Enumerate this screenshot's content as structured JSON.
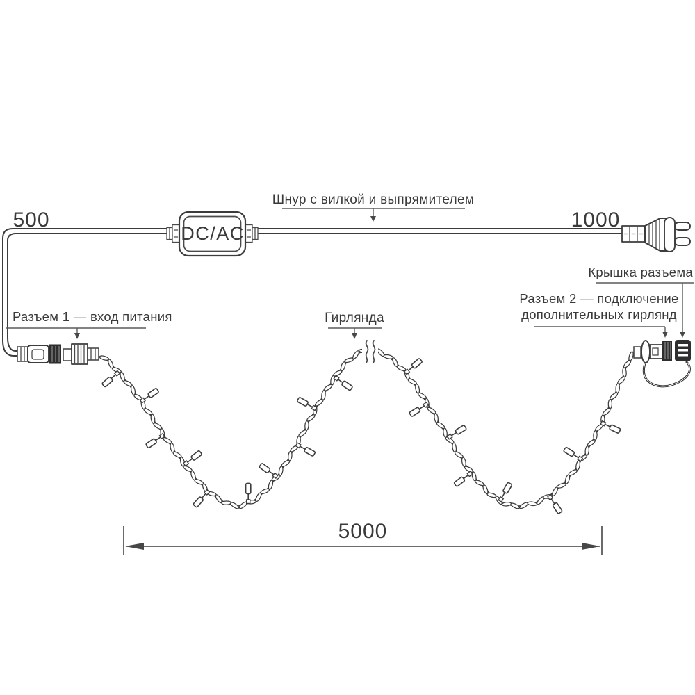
{
  "diagram": {
    "adapter_label": "DC/AC",
    "labels": {
      "cord": "Шнур с вилкой и выпрямителем",
      "connector1": "Разъем 1 — вход питания",
      "garland": "Гирлянда",
      "connector_cap": "Крышка разъема",
      "connector2_line1": "Разъем 2 — подключение",
      "connector2_line2": "дополнительных гирлянд"
    },
    "dimensions": {
      "cord_left_mm": "500",
      "cord_right_mm": "1000",
      "garland_length_mm": "5000"
    },
    "bulb_count": 18,
    "colors": {
      "line": "#3c3c3c",
      "text": "#3a3a3a",
      "dark_fill": "#2e2e2e",
      "background": "#ffffff"
    }
  }
}
